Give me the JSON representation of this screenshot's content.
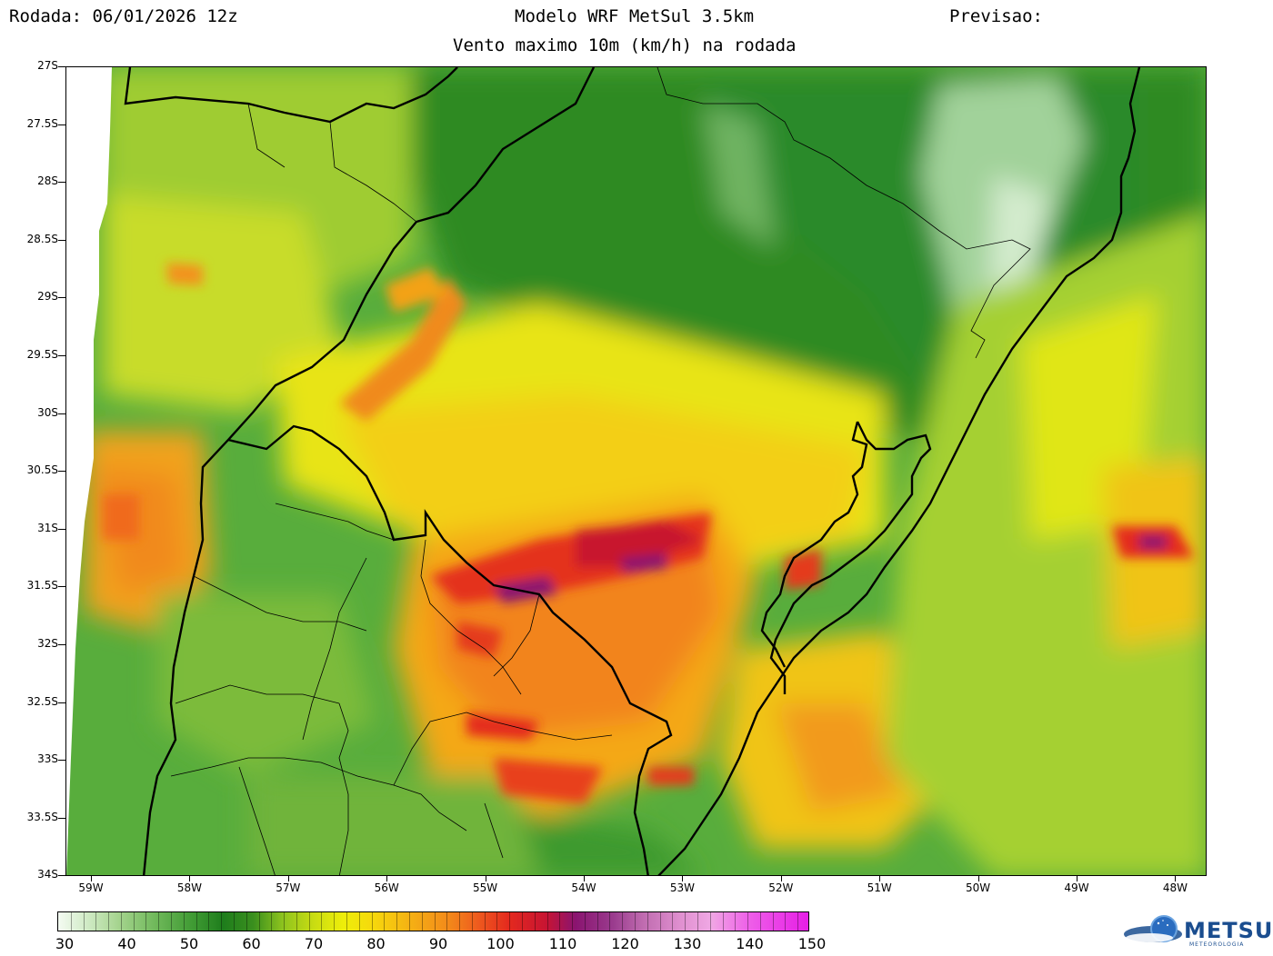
{
  "header": {
    "run": "Rodada: 06/01/2026 12z",
    "model": "Modelo WRF MetSul 3.5km",
    "forecast": "Previsao:",
    "subtitle": "Vento maximo 10m (km/h) na rodada"
  },
  "axes": {
    "lat_labels": [
      "27S",
      "27.5S",
      "28S",
      "28.5S",
      "29S",
      "29.5S",
      "30S",
      "30.5S",
      "31S",
      "31.5S",
      "32S",
      "32.5S",
      "33S",
      "33.5S",
      "34S"
    ],
    "lon_labels": [
      "59W",
      "58W",
      "57W",
      "56W",
      "55W",
      "54W",
      "53W",
      "52W",
      "51W",
      "50W",
      "49W",
      "48W"
    ]
  },
  "colorbar": {
    "labels": [
      "30",
      "40",
      "50",
      "60",
      "70",
      "80",
      "90",
      "100",
      "110",
      "120",
      "130",
      "140",
      "150"
    ],
    "unit": "km/h"
  },
  "colors": {
    "calm": "#1e7d1c",
    "moderate": "#eeee0a",
    "strong": "#f38a1a",
    "very_strong": "#e42a1e",
    "extreme": "#8a1470"
  },
  "logo": {
    "name": "METSUL",
    "tagline": "METEOROLOGIA"
  }
}
